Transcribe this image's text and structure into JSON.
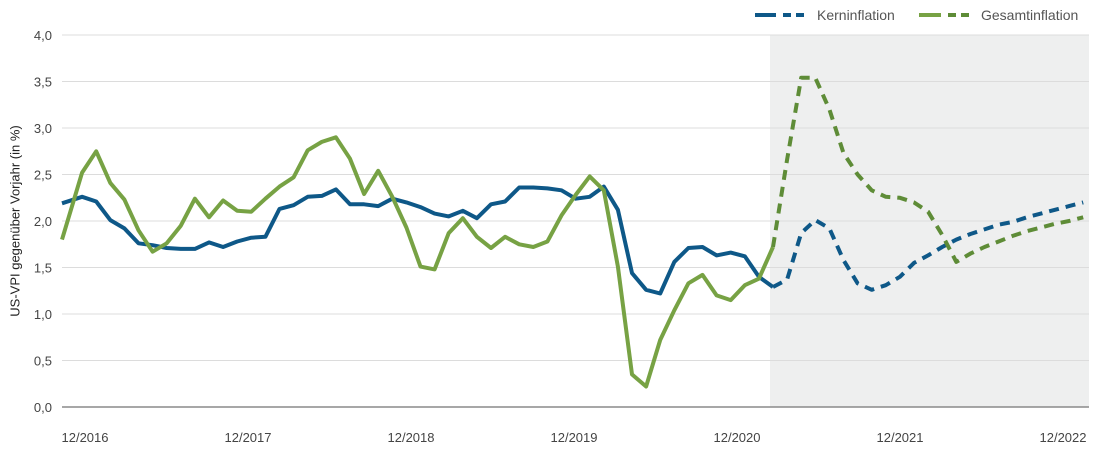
{
  "chart_data": {
    "type": "line",
    "title": "",
    "xlabel": "",
    "ylabel": "US-VPI gegenüber Vorjahr (in %)",
    "ylim": [
      0,
      4
    ],
    "yticks": [
      "0,0",
      "0,5",
      "1,0",
      "1,5",
      "2,0",
      "2,5",
      "3,0",
      "3,5",
      "4,0"
    ],
    "ytick_values": [
      0,
      0.5,
      1,
      1.5,
      2,
      2.5,
      3,
      3.5,
      4
    ],
    "xticks": [
      "12/2016",
      "12/2017",
      "12/2018",
      "12/2019",
      "12/2020",
      "12/2021",
      "12/2022"
    ],
    "grid": "horizontal",
    "legend": "top-right",
    "forecast_start": "01/2021",
    "forecast_shade_color": "#eeefef",
    "x": [
      "11/2016",
      "12/2016",
      "01/2017",
      "02/2017",
      "03/2017",
      "04/2017",
      "05/2017",
      "06/2017",
      "07/2017",
      "08/2017",
      "09/2017",
      "10/2017",
      "11/2017",
      "12/2017",
      "01/2018",
      "02/2018",
      "03/2018",
      "04/2018",
      "05/2018",
      "06/2018",
      "07/2018",
      "08/2018",
      "09/2018",
      "10/2018",
      "11/2018",
      "12/2018",
      "01/2019",
      "02/2019",
      "03/2019",
      "04/2019",
      "05/2019",
      "06/2019",
      "07/2019",
      "08/2019",
      "09/2019",
      "10/2019",
      "11/2019",
      "12/2019",
      "01/2020",
      "02/2020",
      "03/2020",
      "04/2020",
      "05/2020",
      "06/2020",
      "07/2020",
      "08/2020",
      "09/2020",
      "10/2020",
      "11/2020",
      "12/2020",
      "01/2021",
      "02/2021",
      "03/2021",
      "04/2021",
      "05/2021",
      "06/2021",
      "07/2021",
      "08/2021",
      "09/2021",
      "10/2021",
      "11/2021",
      "12/2021",
      "01/2022",
      "02/2022",
      "03/2022",
      "04/2022",
      "05/2022",
      "06/2022",
      "07/2022",
      "08/2022",
      "09/2022",
      "10/2022",
      "11/2022"
    ],
    "series": [
      {
        "name": "Kerninflation",
        "color": "#0e5888",
        "forecast_color": "#0e5888",
        "values": [
          2.19,
          2.26,
          2.21,
          2.01,
          1.92,
          1.76,
          1.74,
          1.71,
          1.7,
          1.7,
          1.77,
          1.72,
          1.78,
          1.82,
          1.83,
          2.13,
          2.17,
          2.26,
          2.27,
          2.34,
          2.18,
          2.18,
          2.16,
          2.24,
          2.2,
          2.15,
          2.08,
          2.05,
          2.11,
          2.03,
          2.18,
          2.21,
          2.36,
          2.36,
          2.35,
          2.33,
          2.24,
          2.26,
          2.37,
          2.12,
          1.44,
          1.26,
          1.22,
          1.56,
          1.71,
          1.72,
          1.63,
          1.66,
          1.62,
          1.4,
          1.29,
          1.37,
          1.87,
          2.01,
          1.92,
          1.58,
          1.33,
          1.26,
          1.31,
          1.4,
          1.55,
          1.63,
          1.72,
          1.8,
          1.86,
          1.91,
          1.96,
          1.99,
          2.04,
          2.08,
          2.12,
          2.16,
          2.2
        ]
      },
      {
        "name": "Gesamtinflation",
        "color": "#77a244",
        "forecast_color": "#5e8c37",
        "values": [
          1.8,
          2.52,
          2.75,
          2.41,
          2.23,
          1.9,
          1.67,
          1.76,
          1.95,
          2.24,
          2.04,
          2.22,
          2.11,
          2.1,
          2.24,
          2.37,
          2.47,
          2.76,
          2.85,
          2.9,
          2.67,
          2.29,
          2.54,
          2.26,
          1.93,
          1.51,
          1.48,
          1.87,
          2.03,
          1.83,
          1.71,
          1.83,
          1.75,
          1.72,
          1.78,
          2.06,
          2.28,
          2.48,
          2.33,
          1.51,
          0.35,
          0.22,
          0.72,
          1.04,
          1.33,
          1.42,
          1.2,
          1.15,
          1.31,
          1.38,
          1.72,
          2.66,
          3.54,
          3.54,
          3.2,
          2.73,
          2.5,
          2.33,
          2.26,
          2.25,
          2.2,
          2.1,
          1.85,
          1.56,
          1.65,
          1.72,
          1.78,
          1.84,
          1.89,
          1.93,
          1.97,
          2.0,
          2.04
        ]
      }
    ]
  }
}
